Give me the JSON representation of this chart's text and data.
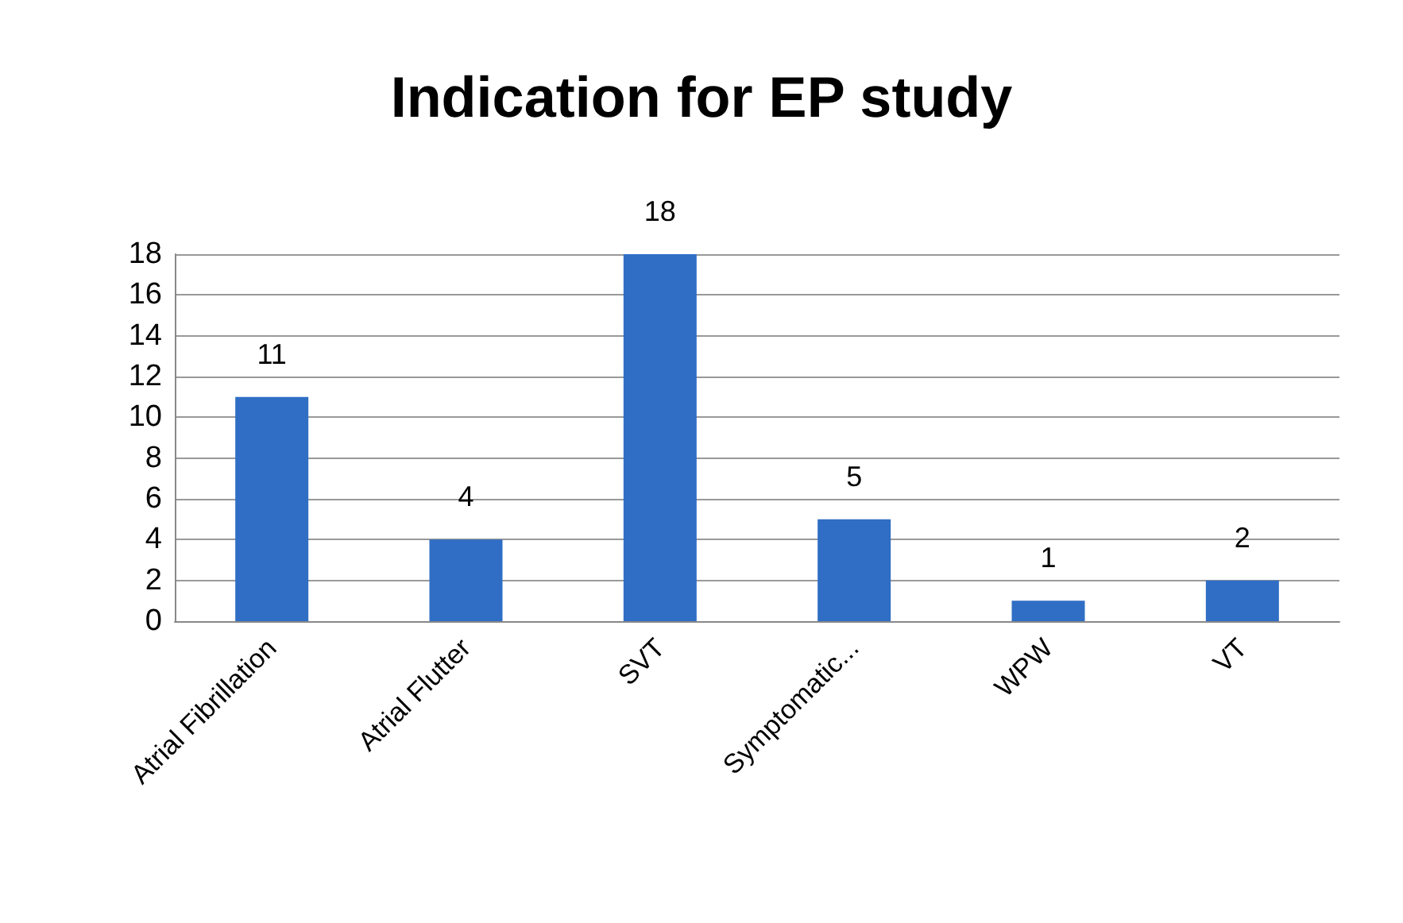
{
  "chart_data": {
    "type": "bar",
    "title": "Indication for EP study",
    "categories": [
      "Atrial Fibrillation",
      "Atrial Flutter",
      "SVT",
      "Symptomatic...",
      "WPW",
      "VT"
    ],
    "values": [
      11,
      4,
      18,
      5,
      1,
      2
    ],
    "color": "#2f6ec4",
    "ylim": [
      0,
      18
    ],
    "yticks": [
      0,
      2,
      4,
      6,
      8,
      10,
      12,
      14,
      16,
      18
    ],
    "grid": "y",
    "data_labels": true
  }
}
